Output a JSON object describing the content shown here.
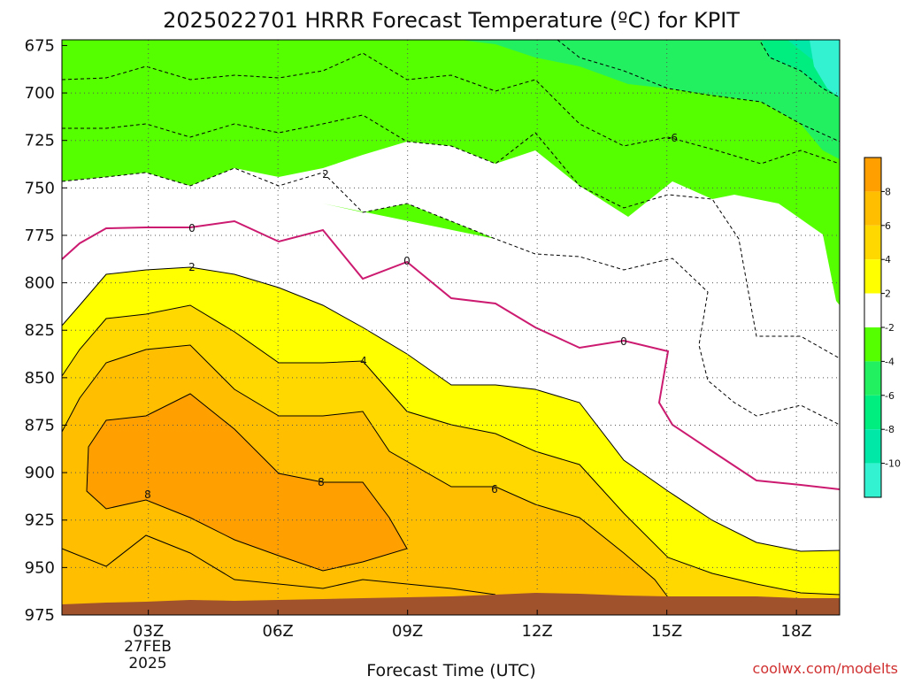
{
  "chart_data": {
    "type": "contour",
    "title": "2025022701 HRRR Forecast Temperature (ºC) for KPIT",
    "xlabel": "Forecast Time (UTC)",
    "ylabel": "",
    "credit": "coolwx.com/modelts",
    "x_ticks": [
      "03Z",
      "06Z",
      "09Z",
      "12Z",
      "15Z",
      "18Z"
    ],
    "x_date_lines": [
      "27FEB",
      "2025"
    ],
    "x_range_hours": [
      1,
      19
    ],
    "y_ticks": [
      675,
      700,
      725,
      750,
      775,
      800,
      825,
      850,
      875,
      900,
      925,
      950,
      975
    ],
    "y_range_hpa": [
      672,
      975
    ],
    "grid": true,
    "contour_labels": [
      "2",
      "0",
      "2",
      "0",
      "0",
      "4",
      "8",
      "6",
      "-6"
    ],
    "colorbar": {
      "levels": [
        -12,
        -10,
        -8,
        -6,
        -4,
        -2,
        2,
        4,
        6,
        8,
        10
      ],
      "tick_labels": [
        "8",
        "6",
        "4",
        "2",
        "-2",
        "-4",
        "-6",
        "-8",
        "-10"
      ],
      "colors": {
        "below_-10": "#33f2d2",
        "-10_-8": "#00e8a8",
        "-8_-6": "#00ee80",
        "-6_-4": "#22f060",
        "-4_-2": "#55ff00",
        "-2_2": "#ffffff",
        "2_4": "#ffff00",
        "4_6": "#ffd800",
        "6_8": "#ffbe00",
        "8_10": "#ff9f00"
      }
    },
    "terrain_color": "#a0522d"
  }
}
